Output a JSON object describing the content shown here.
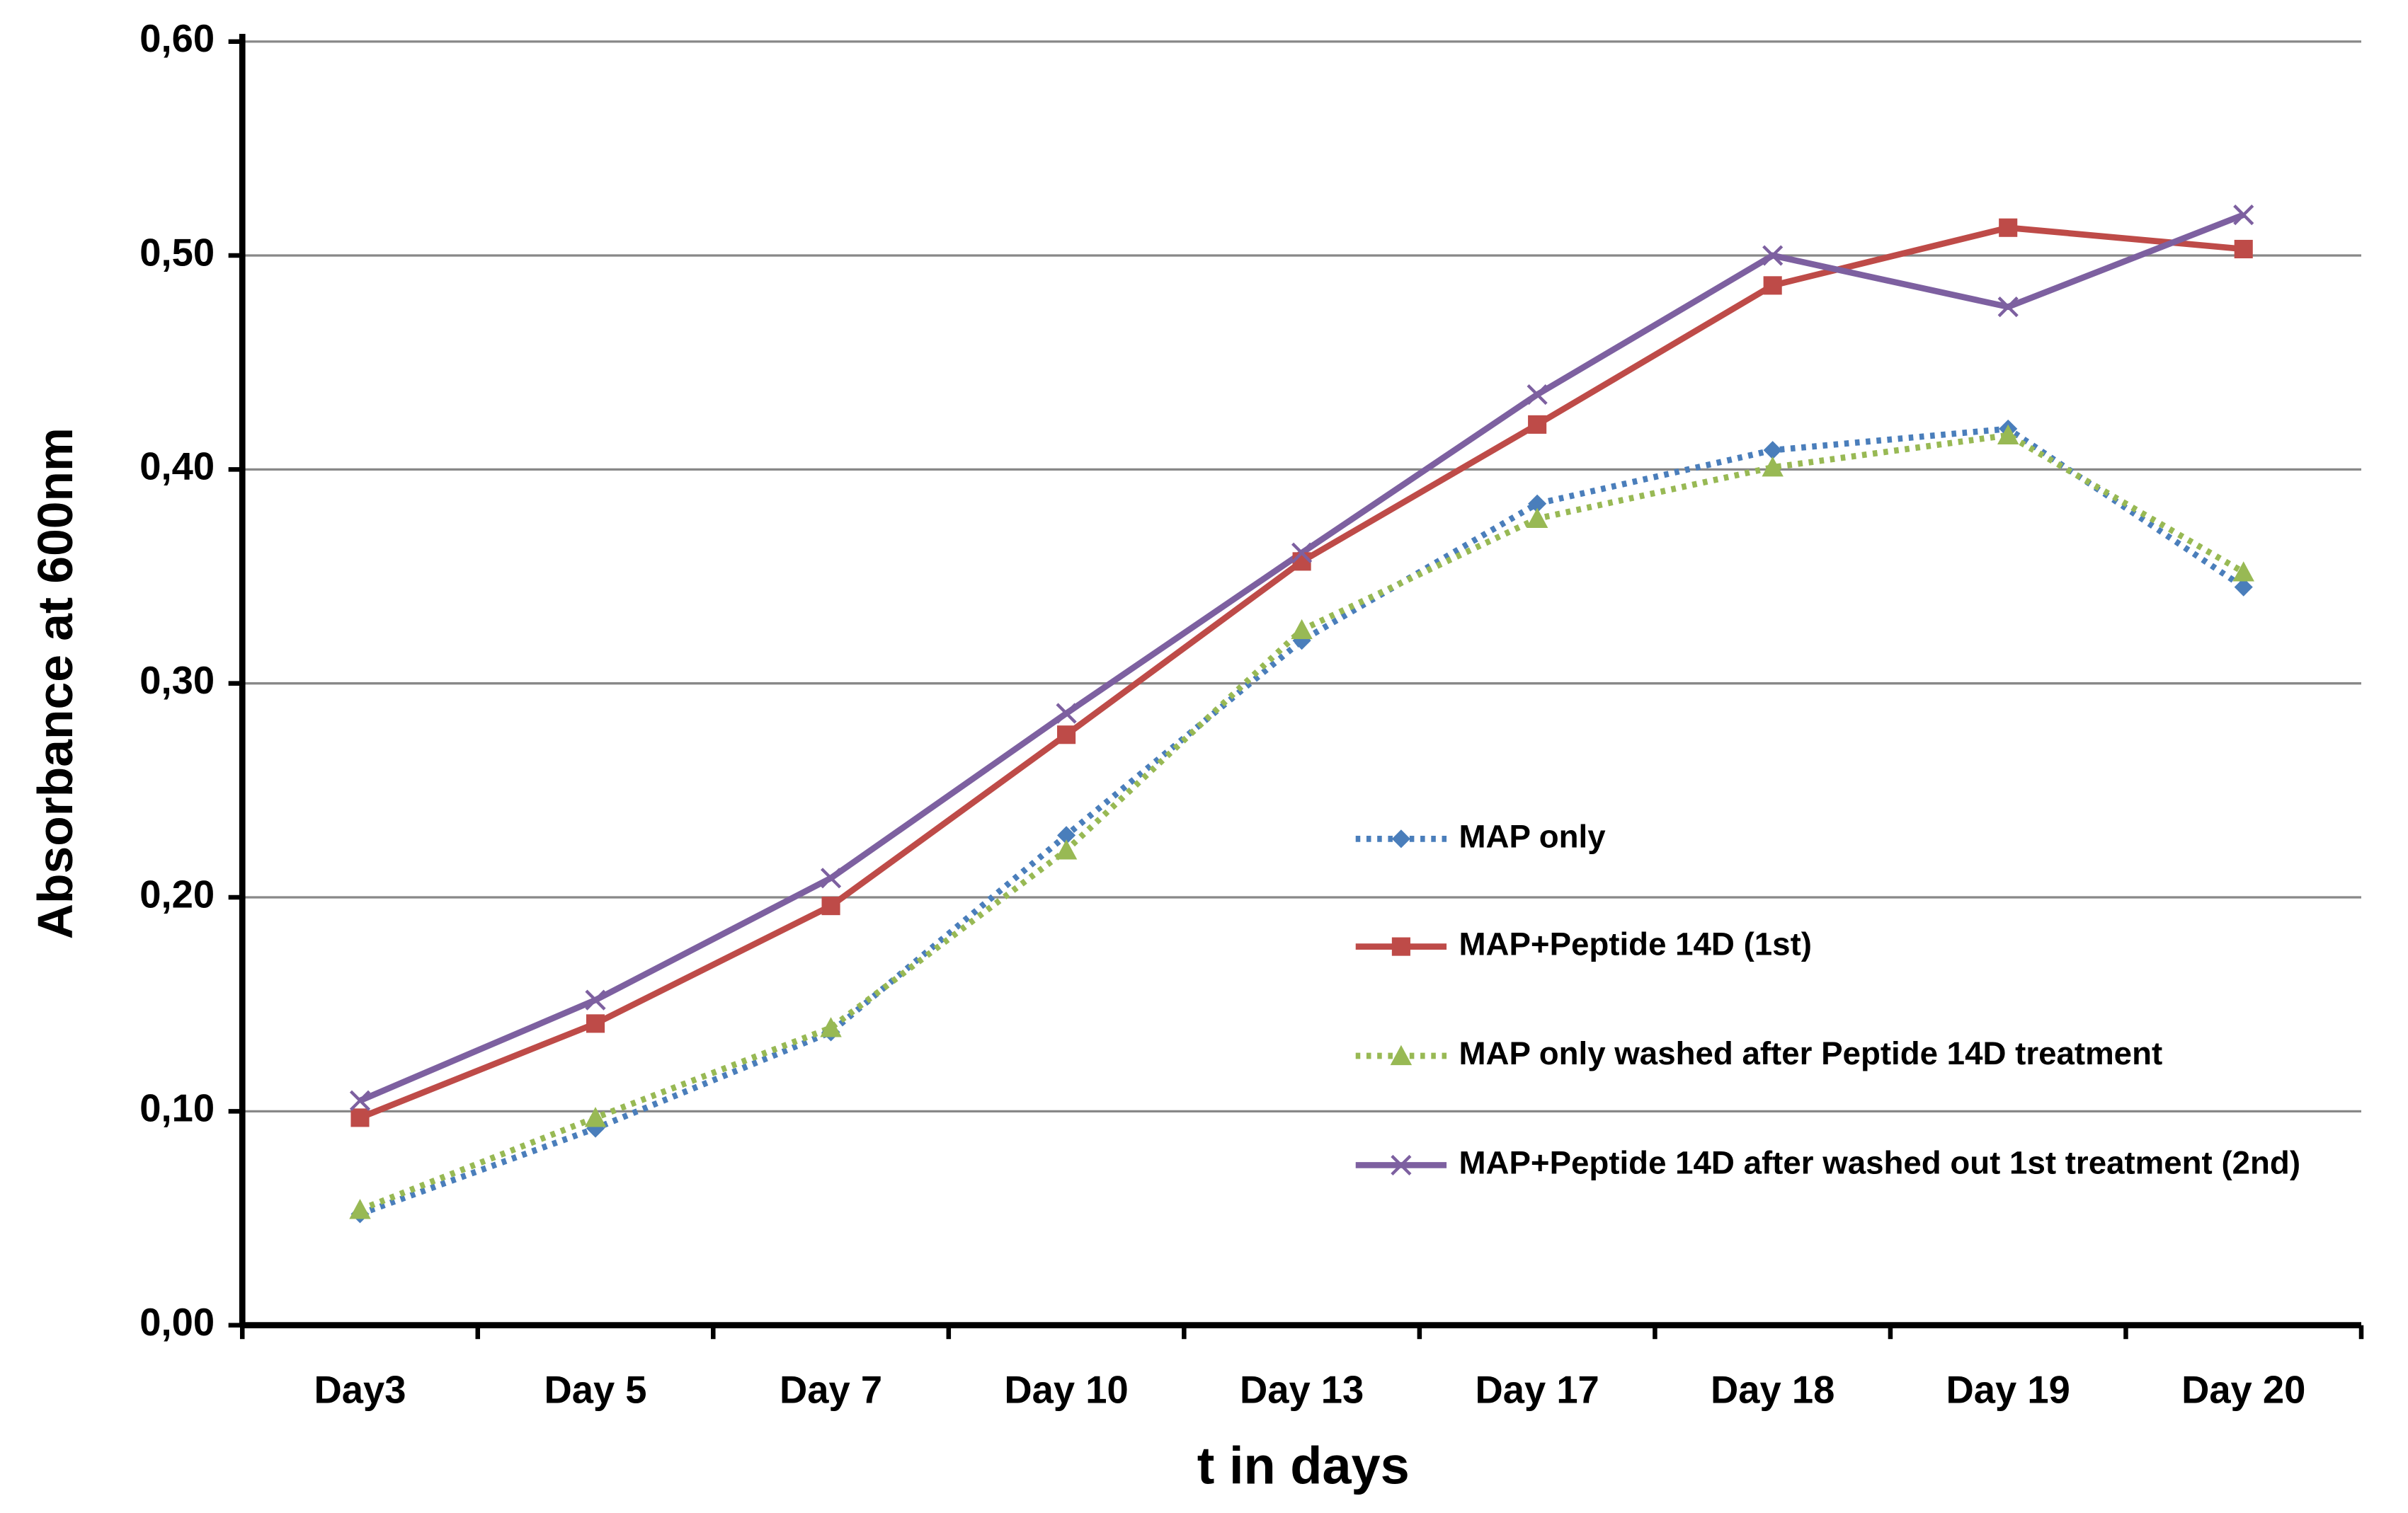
{
  "chart_data": {
    "type": "line",
    "y_label": "Absorbance at 600nm",
    "x_label": "t in days",
    "categories": [
      "Day3",
      "Day 5",
      "Day 7",
      "Day 10",
      "Day 13",
      "Day 17",
      "Day 18",
      "Day 19",
      "Day 20"
    ],
    "ylim": [
      0,
      0.6
    ],
    "yticks": [
      {
        "value": 0,
        "label": "0,00"
      },
      {
        "value": 0.1,
        "label": "0,10"
      },
      {
        "value": 0.2,
        "label": "0,20"
      },
      {
        "value": 0.3,
        "label": "0,30"
      },
      {
        "value": 0.4,
        "label": "0,40"
      },
      {
        "value": 0.5,
        "label": "0,50"
      },
      {
        "value": 0.6,
        "label": "0,60"
      }
    ],
    "grid": true,
    "legend": "right",
    "series": [
      {
        "name": "MAP only",
        "color": "#4a7ebb",
        "dash": "dotted",
        "marker": "diamond",
        "values": [
          0.052,
          0.092,
          0.137,
          0.229,
          0.32,
          0.384,
          0.409,
          0.419,
          0.345
        ]
      },
      {
        "name": "MAP+Peptide 14D (1st)",
        "color": "#be4b48",
        "dash": "solid",
        "marker": "square",
        "values": [
          0.097,
          0.141,
          0.196,
          0.276,
          0.357,
          0.421,
          0.486,
          0.513,
          0.503
        ]
      },
      {
        "name": "MAP only washed after Peptide 14D treatment",
        "color": "#98b954",
        "dash": "dotted",
        "marker": "triangle",
        "values": [
          0.054,
          0.097,
          0.139,
          0.222,
          0.325,
          0.377,
          0.401,
          0.416,
          0.352
        ]
      },
      {
        "name": "MAP+Peptide 14D after washed out 1st treatment (2nd)",
        "color": "#7d60a0",
        "dash": "solid",
        "marker": "x",
        "values": [
          0.105,
          0.152,
          0.209,
          0.286,
          0.361,
          0.435,
          0.5,
          0.476,
          0.519
        ]
      }
    ]
  }
}
